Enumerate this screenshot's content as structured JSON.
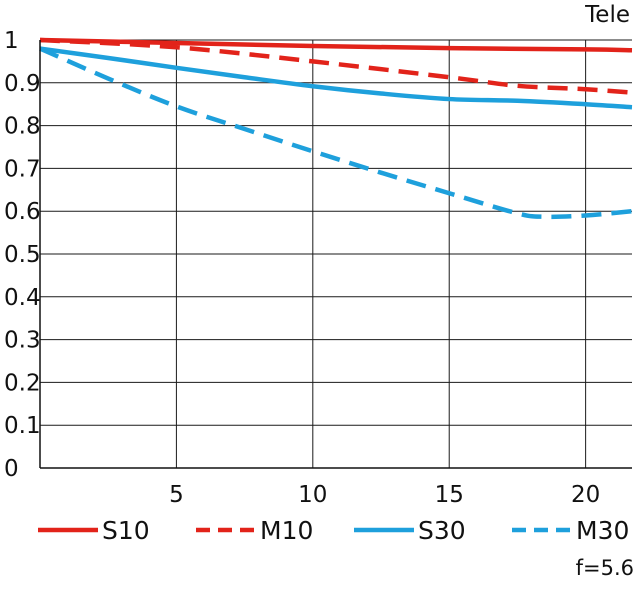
{
  "chart_data": {
    "type": "line",
    "title": "Tele",
    "note": "f=5.6",
    "xlim": [
      0,
      21.7
    ],
    "ylim": [
      0,
      1
    ],
    "x_ticks": [
      5,
      10,
      15,
      20
    ],
    "x_tick_labels": [
      "5",
      "10",
      "15",
      "20"
    ],
    "y_ticks": [
      0,
      0.1,
      0.2,
      0.3,
      0.4,
      0.5,
      0.6,
      0.7,
      0.8,
      0.9,
      1
    ],
    "y_tick_labels": [
      "0",
      "0.1",
      "0.2",
      "0.3",
      "0.4",
      "0.5",
      "0.6",
      "0.7",
      "0.8",
      "0.9",
      "1"
    ],
    "grid": true,
    "legend_position": "bottom",
    "series": [
      {
        "name": "S10",
        "color": "#e2231a",
        "style": "solid",
        "x": [
          0,
          5,
          10,
          15,
          20,
          21.7
        ],
        "y": [
          1.0,
          0.993,
          0.986,
          0.981,
          0.978,
          0.976
        ]
      },
      {
        "name": "M10",
        "color": "#e2231a",
        "style": "dashed",
        "x": [
          0,
          5,
          10,
          15,
          17.5,
          20,
          21.7
        ],
        "y": [
          1.0,
          0.983,
          0.95,
          0.913,
          0.893,
          0.885,
          0.877
        ]
      },
      {
        "name": "S30",
        "color": "#1ea0dc",
        "style": "solid",
        "x": [
          0,
          2.5,
          5,
          7.5,
          10,
          12.5,
          15,
          17.5,
          20,
          21.7
        ],
        "y": [
          0.98,
          0.958,
          0.935,
          0.913,
          0.892,
          0.875,
          0.862,
          0.858,
          0.85,
          0.843
        ]
      },
      {
        "name": "M30",
        "color": "#1ea0dc",
        "style": "dashed",
        "x": [
          0,
          2.5,
          5,
          7.5,
          10,
          12.5,
          15,
          17.5,
          18.5,
          20,
          21.7
        ],
        "y": [
          0.98,
          0.91,
          0.845,
          0.792,
          0.74,
          0.69,
          0.642,
          0.595,
          0.587,
          0.59,
          0.6
        ]
      }
    ]
  }
}
